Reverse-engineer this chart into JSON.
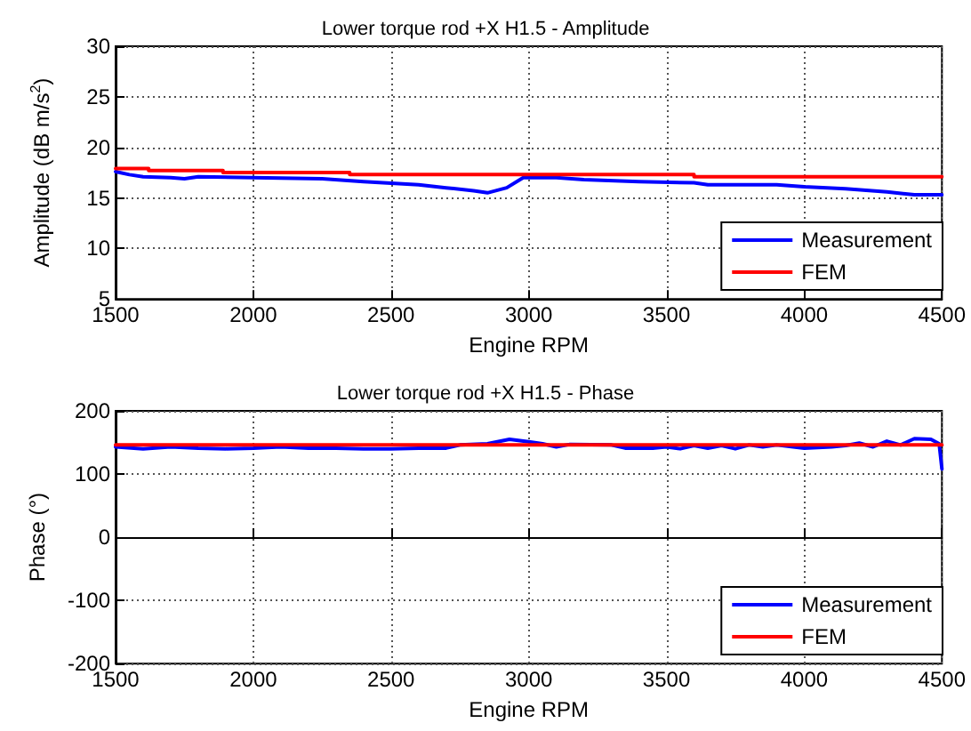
{
  "chart_data": [
    {
      "type": "line",
      "title": "Lower torque rod +X H1.5 - Amplitude",
      "xlabel": "Engine RPM",
      "ylabel": "Amplitude (dB m/s$^{2}$)",
      "xlim": [
        1500,
        4500
      ],
      "xticks": [
        1500,
        2000,
        2500,
        3000,
        3500,
        4000,
        4500
      ],
      "ylim": [
        5,
        30
      ],
      "yticks": [
        5,
        10,
        15,
        20,
        25,
        30
      ],
      "grid": true,
      "legend": "bottom right",
      "line_style": "solid",
      "marker": "none",
      "series": [
        {
          "name": "Measurement",
          "color": "#0000ff",
          "x": [
            1500,
            1550,
            1600,
            1700,
            1750,
            1800,
            2000,
            2250,
            2400,
            2600,
            2700,
            2800,
            2850,
            2920,
            2980,
            3100,
            3200,
            3400,
            3600,
            3650,
            3900,
            4000,
            4150,
            4300,
            4400,
            4500
          ],
          "values": [
            17.6,
            17.3,
            17.1,
            17.0,
            16.9,
            17.1,
            17.0,
            16.9,
            16.6,
            16.3,
            16.0,
            15.7,
            15.5,
            16.0,
            17.0,
            17.0,
            16.8,
            16.6,
            16.5,
            16.3,
            16.3,
            16.1,
            15.9,
            15.6,
            15.3,
            15.3
          ]
        },
        {
          "name": "FEM",
          "color": "#ff0000",
          "x": [
            1500,
            1620,
            1620,
            1890,
            1890,
            2350,
            2350,
            3600,
            3600,
            4500
          ],
          "values": [
            17.9,
            17.9,
            17.7,
            17.7,
            17.5,
            17.5,
            17.3,
            17.3,
            17.1,
            17.1
          ]
        }
      ]
    },
    {
      "type": "line",
      "title": "Lower torque rod +X H1.5 - Phase",
      "xlabel": "Engine RPM",
      "ylabel": "Phase (°)",
      "xlim": [
        1500,
        4500
      ],
      "xticks": [
        1500,
        2000,
        2500,
        3000,
        3500,
        4000,
        4500
      ],
      "ylim": [
        -200,
        200
      ],
      "yticks": [
        -200,
        -100,
        0,
        100,
        200
      ],
      "grid": true,
      "legend": "bottom right",
      "line_style": "solid",
      "marker": "none",
      "series": [
        {
          "name": "Measurement",
          "color": "#0000ff",
          "x": [
            1500,
            1600,
            1700,
            1800,
            1900,
            2000,
            2100,
            2200,
            2300,
            2400,
            2500,
            2600,
            2700,
            2750,
            2850,
            2930,
            3000,
            3050,
            3100,
            3150,
            3300,
            3350,
            3450,
            3500,
            3550,
            3600,
            3650,
            3700,
            3750,
            3800,
            3850,
            3900,
            4000,
            4100,
            4150,
            4200,
            4250,
            4300,
            4350,
            4400,
            4460,
            4490,
            4500
          ],
          "values": [
            143,
            140,
            143,
            141,
            140,
            141,
            143,
            141,
            141,
            140,
            140,
            141,
            141,
            146,
            148,
            155,
            151,
            148,
            143,
            147,
            146,
            141,
            141,
            143,
            140,
            145,
            141,
            145,
            140,
            146,
            143,
            146,
            141,
            143,
            145,
            149,
            143,
            152,
            146,
            156,
            155,
            148,
            108
          ]
        },
        {
          "name": "FEM",
          "color": "#ff0000",
          "x": [
            1500,
            4500
          ],
          "values": [
            146,
            146
          ]
        }
      ]
    }
  ]
}
